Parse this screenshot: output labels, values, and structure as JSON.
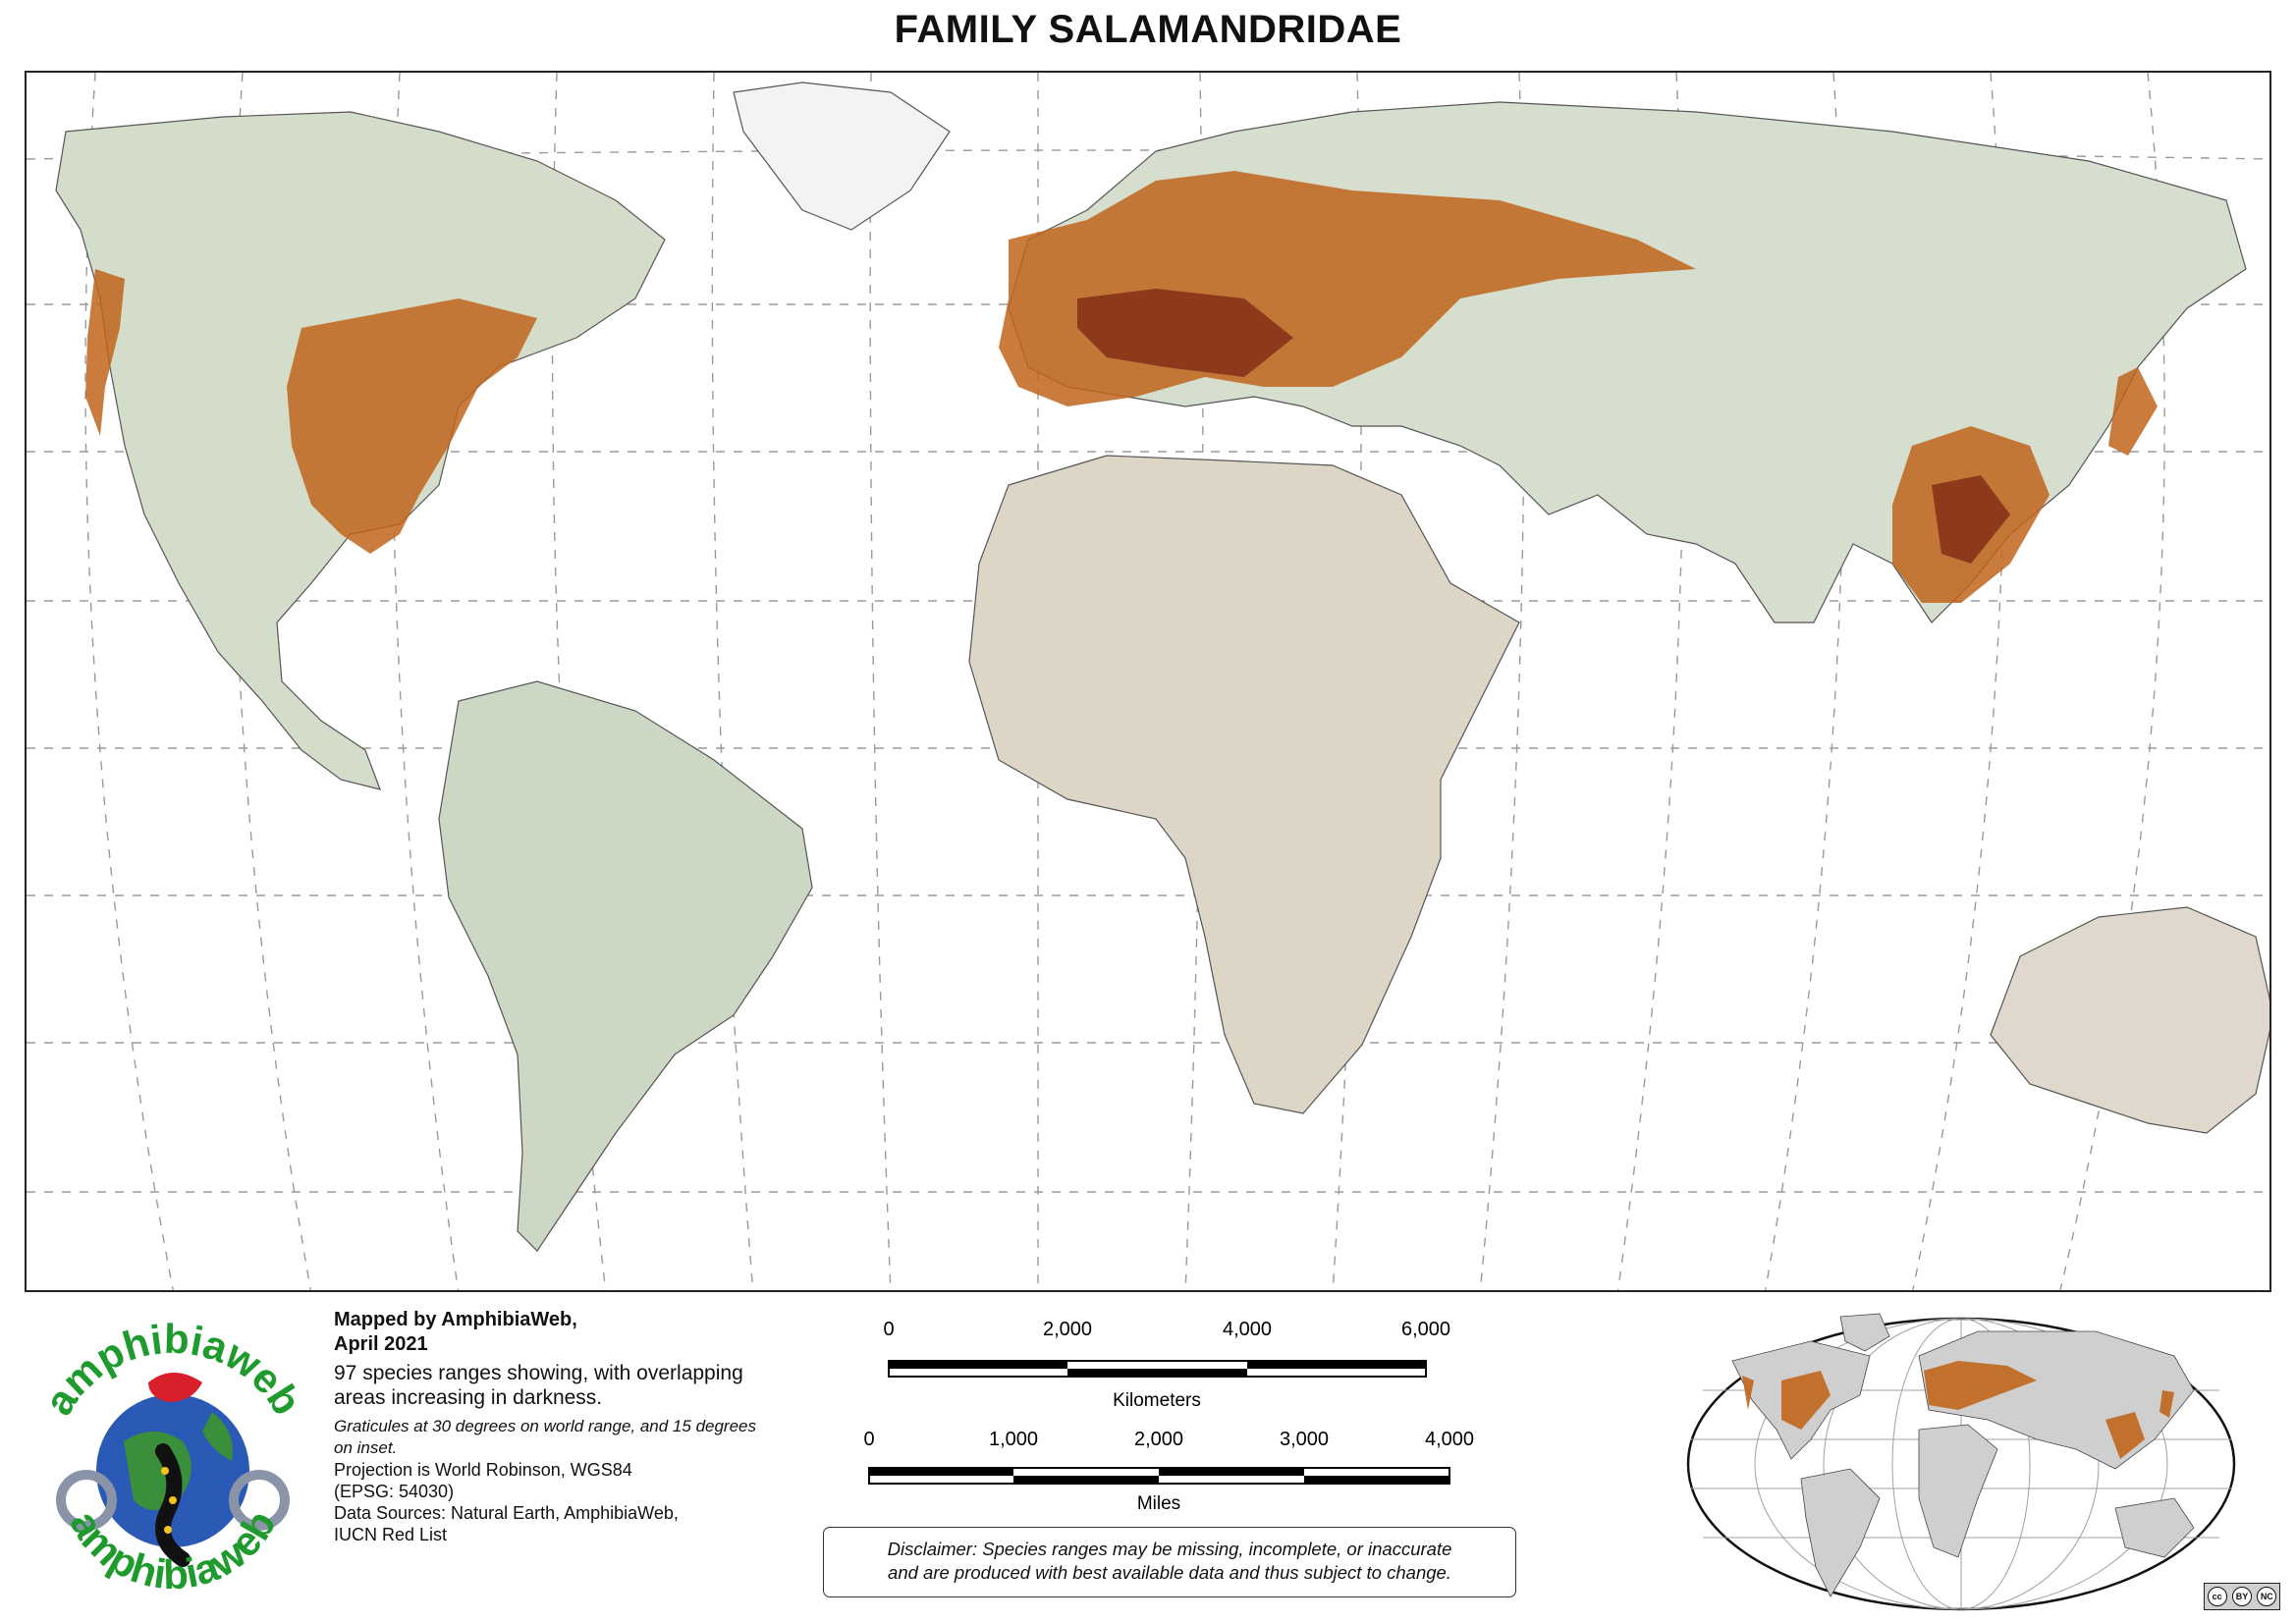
{
  "title": "FAMILY SALAMANDRIDAE",
  "credits": {
    "mapped_by": "Mapped by AmphibiaWeb,",
    "date": "April 2021",
    "description": "97 species ranges showing, with overlapping areas increasing in darkness.",
    "graticules": "Graticules at 30 degrees on world range, and 15 degrees on inset.",
    "projection_1": "Projection is World Robinson, WGS84",
    "projection_2": "(EPSG: 54030)",
    "sources_1": "Data Sources: Natural Earth, AmphibiaWeb,",
    "sources_2": "IUCN Red List"
  },
  "logo": {
    "text_top": "amphibiaweb",
    "text_bottom": "amphibiaweb",
    "icon": "frog-salamander-globe-icon"
  },
  "scale_km": {
    "ticks": [
      "0",
      "2,000",
      "4,000",
      "6,000"
    ],
    "unit": "Kilometers"
  },
  "scale_mi": {
    "ticks": [
      "0",
      "1,000",
      "2,000",
      "3,000",
      "4,000"
    ],
    "unit": "Miles"
  },
  "disclaimer": {
    "line1": "Disclaimer: Species ranges may be missing, incomplete, or inaccurate",
    "line2": "and are produced with best available data and thus subject to change."
  },
  "license": {
    "icon": "creative-commons-by-nc-icon",
    "by": "BY",
    "nc": "NC"
  },
  "colors": {
    "ocean": "#ffffff",
    "land": "#d3dccb",
    "desert": "#e2d9cc",
    "range": "#c0651c",
    "range_dark": "#7a2a14",
    "inset_land": "#cfcfcf"
  }
}
